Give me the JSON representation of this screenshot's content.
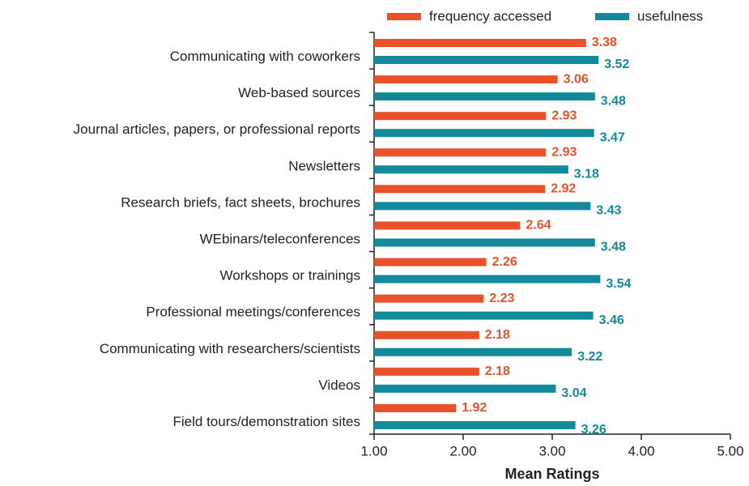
{
  "chart_data": {
    "type": "hbar",
    "categories": [
      "Communicating with coworkers",
      "Web-based sources",
      "Journal articles, papers, or professional reports",
      "Newsletters",
      "Research briefs, fact sheets, brochures",
      "WEbinars/teleconferences",
      "Workshops or trainings",
      "Professional meetings/conferences",
      "Communicating with researchers/scientists",
      "Videos",
      "Field tours/demonstration sites"
    ],
    "series": [
      {
        "name": "frequency accessed",
        "color": "#e8512a",
        "values": [
          3.38,
          3.06,
          2.93,
          2.93,
          2.92,
          2.64,
          2.26,
          2.23,
          2.18,
          2.18,
          1.92
        ]
      },
      {
        "name": "usefulness",
        "color": "#138a9c",
        "values": [
          3.52,
          3.48,
          3.47,
          3.18,
          3.43,
          3.48,
          3.54,
          3.46,
          3.22,
          3.04,
          3.26
        ]
      }
    ],
    "x_label": "Mean Ratings",
    "xlim": [
      1,
      5
    ],
    "xticks": [
      {
        "value": 1,
        "label": "1.00"
      },
      {
        "value": 2,
        "label": "2.00"
      },
      {
        "value": 3,
        "label": "3.00"
      },
      {
        "value": 4,
        "label": "4.00"
      },
      {
        "value": 5,
        "label": "5.00"
      }
    ],
    "legend": "top",
    "grid": false
  }
}
